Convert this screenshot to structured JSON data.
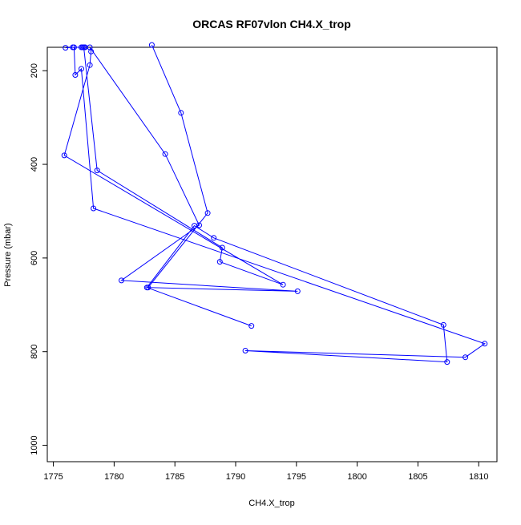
{
  "chart_data": {
    "type": "line",
    "title": "ORCAS RF07vlon CH4.X_trop",
    "xlabel": "CH4.X_trop",
    "ylabel": "Pressure (mbar)",
    "xlim": [
      1774.5,
      1811.5
    ],
    "ylim": [
      1035,
      150
    ],
    "y_reversed": true,
    "grid": false,
    "legend": "none",
    "line_color": "#0000ff",
    "marker": "open-circle",
    "x_ticks": [
      1775,
      1780,
      1785,
      1790,
      1795,
      1800,
      1805,
      1810
    ],
    "y_ticks": [
      200,
      400,
      600,
      800,
      1000
    ],
    "series": [
      {
        "points": [
          {
            "x": 1783.1,
            "y": 145
          },
          {
            "x": 1785.5,
            "y": 290
          },
          {
            "x": 1787.7,
            "y": 504
          },
          {
            "x": 1782.8,
            "y": 663
          },
          {
            "x": 1795.1,
            "y": 671
          },
          {
            "x": 1780.6,
            "y": 648
          },
          {
            "x": 1787.0,
            "y": 530
          },
          {
            "x": 1784.2,
            "y": 378
          },
          {
            "x": 1778.0,
            "y": 150
          },
          {
            "x": 1778.1,
            "y": 159
          },
          {
            "x": 1778.0,
            "y": 188
          },
          {
            "x": 1775.9,
            "y": 381
          },
          {
            "x": 1793.9,
            "y": 657
          },
          {
            "x": 1788.7,
            "y": 608
          },
          {
            "x": 1788.9,
            "y": 578
          },
          {
            "x": 1778.6,
            "y": 413
          },
          {
            "x": 1777.5,
            "y": 150
          },
          {
            "x": 1777.6,
            "y": 150
          },
          {
            "x": 1777.4,
            "y": 150
          },
          {
            "x": 1777.6,
            "y": 150
          },
          {
            "x": 1777.3,
            "y": 150
          },
          {
            "x": 1776.6,
            "y": 150
          },
          {
            "x": 1776.0,
            "y": 151
          },
          {
            "x": 1776.7,
            "y": 150
          },
          {
            "x": 1776.8,
            "y": 209
          },
          {
            "x": 1777.3,
            "y": 196
          },
          {
            "x": 1778.3,
            "y": 494
          },
          {
            "x": 1810.5,
            "y": 783
          },
          {
            "x": 1808.9,
            "y": 812
          },
          {
            "x": 1790.8,
            "y": 798
          },
          {
            "x": 1807.4,
            "y": 822
          },
          {
            "x": 1807.1,
            "y": 743
          },
          {
            "x": 1788.2,
            "y": 557
          },
          {
            "x": 1786.6,
            "y": 531
          },
          {
            "x": 1782.7,
            "y": 663
          },
          {
            "x": 1791.3,
            "y": 745
          }
        ]
      }
    ]
  }
}
